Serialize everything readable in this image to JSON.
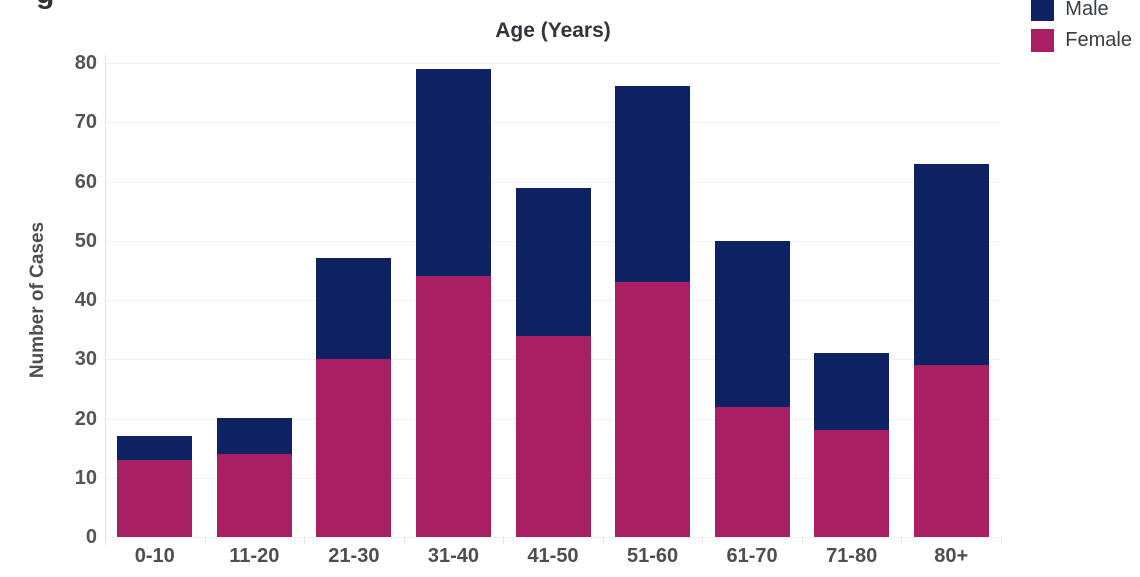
{
  "page": {
    "partial_heading_fragment": "g"
  },
  "legend": {
    "items": [
      {
        "label": "Male",
        "color": "#0e2263"
      },
      {
        "label": "Female",
        "color": "#a91f63"
      }
    ]
  },
  "chart_data": {
    "type": "bar",
    "stacked": true,
    "title": "Age (Years)",
    "xlabel": "",
    "ylabel": "Number of Cases",
    "categories": [
      "0-10",
      "11-20",
      "21-30",
      "31-40",
      "41-50",
      "51-60",
      "61-70",
      "71-80",
      "80+"
    ],
    "series": [
      {
        "name": "Female",
        "color": "#a91f63",
        "values": [
          13,
          14,
          30,
          44,
          34,
          43,
          22,
          18,
          29
        ]
      },
      {
        "name": "Male",
        "color": "#0e2263",
        "values": [
          4,
          6,
          17,
          35,
          25,
          33,
          28,
          13,
          34
        ]
      }
    ],
    "stack_totals": [
      17,
      20,
      47,
      79,
      59,
      76,
      50,
      31,
      63
    ],
    "yticks": [
      0,
      10,
      20,
      30,
      40,
      50,
      60,
      70,
      80
    ],
    "ylim": [
      0,
      80
    ],
    "grid": true,
    "legend_position": "top-right"
  },
  "colors": {
    "background": "#ffffff",
    "gridline": "#f0f0f1",
    "axis_line": "#e4e4e6",
    "y_tick_text": "#54555a",
    "x_tick_text": "#4d4e52",
    "title_text": "#30343c",
    "legend_text": "#383d44"
  }
}
